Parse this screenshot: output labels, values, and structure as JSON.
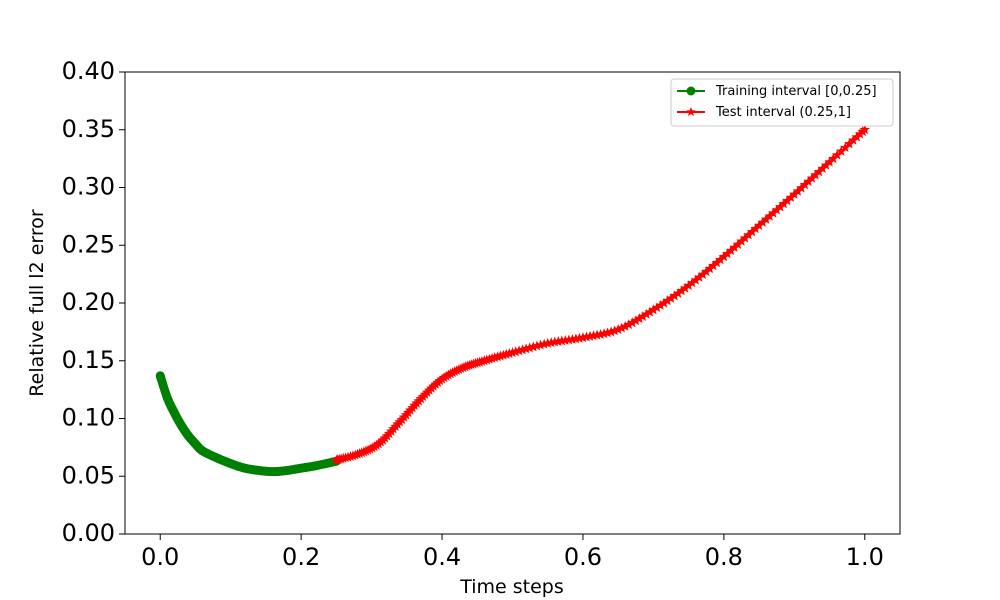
{
  "chart_data": {
    "type": "line",
    "title": "",
    "xlabel": "Time steps",
    "ylabel": "Relative full l2 error",
    "xlim": [
      -0.05,
      1.05
    ],
    "ylim": [
      0,
      0.4
    ],
    "x_ticks": [
      "0.0",
      "0.2",
      "0.4",
      "0.6",
      "0.8",
      "1.0"
    ],
    "y_ticks": [
      "0.00",
      "0.05",
      "0.10",
      "0.15",
      "0.20",
      "0.25",
      "0.30",
      "0.35",
      "0.40"
    ],
    "grid": false,
    "legend_position": "upper right",
    "series": [
      {
        "name": "Training interval [0,0.25]",
        "color": "#008000",
        "marker": "circle",
        "x": [
          0.0,
          0.01,
          0.02,
          0.03,
          0.04,
          0.05,
          0.06,
          0.08,
          0.1,
          0.12,
          0.14,
          0.16,
          0.18,
          0.2,
          0.22,
          0.25
        ],
        "y": [
          0.137,
          0.118,
          0.105,
          0.094,
          0.085,
          0.078,
          0.072,
          0.066,
          0.061,
          0.057,
          0.055,
          0.054,
          0.055,
          0.057,
          0.059,
          0.063
        ]
      },
      {
        "name": "Test interval (0.25,1]",
        "color": "#ff0000",
        "marker": "star",
        "x": [
          0.25,
          0.28,
          0.31,
          0.34,
          0.37,
          0.4,
          0.43,
          0.46,
          0.5,
          0.55,
          0.6,
          0.65,
          0.7,
          0.75,
          0.8,
          0.85,
          0.9,
          0.95,
          1.0
        ],
        "y": [
          0.064,
          0.069,
          0.078,
          0.097,
          0.117,
          0.134,
          0.144,
          0.15,
          0.157,
          0.165,
          0.17,
          0.177,
          0.194,
          0.215,
          0.24,
          0.267,
          0.294,
          0.322,
          0.35
        ]
      }
    ]
  }
}
